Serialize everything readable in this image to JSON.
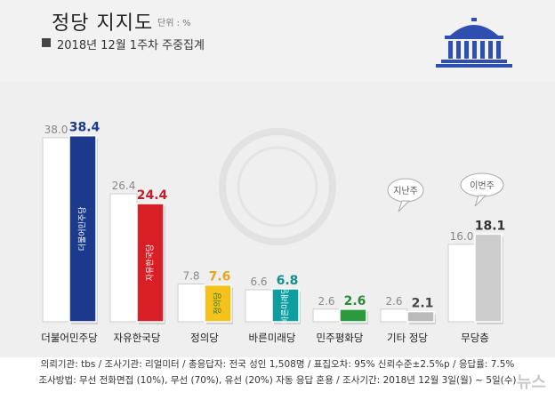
{
  "header": {
    "title": "정당 지지도",
    "unit": "단위 : %",
    "subtitle": "2018년 12월 1주차 주중집계"
  },
  "chart_data": {
    "type": "bar",
    "categories": [
      "더불어민주당",
      "자유한국당",
      "정의당",
      "바른미래당",
      "민주평화당",
      "기타 정당",
      "무당층"
    ],
    "series": [
      {
        "name": "지난주",
        "values": [
          38.0,
          26.4,
          7.8,
          6.6,
          2.6,
          2.6,
          16.0
        ]
      },
      {
        "name": "이번주",
        "values": [
          38.4,
          24.4,
          7.6,
          6.8,
          2.6,
          2.1,
          18.1
        ]
      }
    ],
    "ylim": [
      0,
      40
    ],
    "legend": [
      "지난주",
      "이번주"
    ],
    "party_logos": [
      "더불어민주당",
      "자유한국당",
      "정의당",
      "바른미래당",
      "",
      "",
      ""
    ],
    "colors": {
      "prev": "#ffffff",
      "prev_border": "#cfcfcf",
      "current": [
        "#1b3a8e",
        "#d81f26",
        "#f4c21b",
        "#0f9ea0",
        "#2a9a3a",
        "#bbbbbb",
        "#cccccc"
      ],
      "label_prev": "#888888",
      "label_current": [
        "#1b3a8e",
        "#c0202a",
        "#e6a817",
        "#0f8f8f",
        "#2a8a36",
        "#444444",
        "#333333"
      ]
    }
  },
  "footnotes": {
    "line1": "의뢰기관: tbs / 조사기관: 리얼미터 / 총응답자: 전국 성인 1,508명 / 표집오차: 95% 신뢰수준±2.5%p / 응답률: 7.5%",
    "line2": "조사방법: 무선 전화면접 (10%), 무선 (70%), 유선 (20%) 자동 응답 혼용 / 조사기간: 2018년 12월 3일(월) ~ 5일(수)"
  },
  "watermark": "뉴스"
}
